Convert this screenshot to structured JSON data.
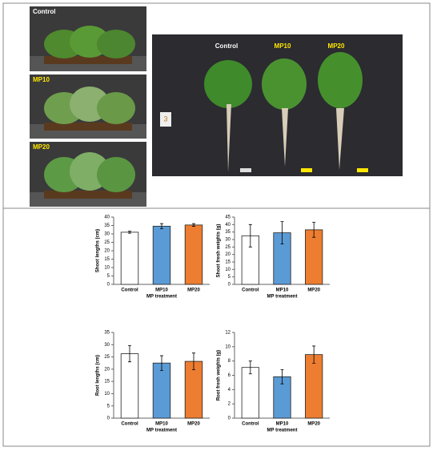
{
  "photos": {
    "panel_labels": [
      "Control",
      "MP10",
      "MP20"
    ],
    "main_labels": [
      "Control",
      "MP10",
      "MP20"
    ],
    "tag": "3"
  },
  "chart_data": [
    {
      "type": "bar",
      "y_label": "Shoot lengths (cm)",
      "x_label": "MP treatment",
      "categories": [
        "Control",
        "MP10",
        "MP20"
      ],
      "values": [
        31,
        34.6,
        35.3
      ],
      "errors": [
        0.6,
        1.5,
        0.8
      ],
      "colors": [
        "#ffffff",
        "#5b9bd5",
        "#ed7d31"
      ],
      "ylim": [
        0,
        40
      ],
      "yticks": [
        0,
        5,
        10,
        15,
        20,
        25,
        30,
        35,
        40
      ]
    },
    {
      "type": "bar",
      "y_label": "Shoot fresh weights (g)",
      "x_label": "MP treatment",
      "categories": [
        "Control",
        "MP10",
        "MP20"
      ],
      "values": [
        32.5,
        34.5,
        36.5
      ],
      "errors": [
        7.5,
        7.5,
        5
      ],
      "colors": [
        "#ffffff",
        "#5b9bd5",
        "#ed7d31"
      ],
      "ylim": [
        0,
        45
      ],
      "yticks": [
        0,
        5,
        10,
        15,
        20,
        25,
        30,
        35,
        40,
        45
      ]
    },
    {
      "type": "bar",
      "y_label": "Root lengths (cm)",
      "x_label": "MP treatment",
      "categories": [
        "Control",
        "MP10",
        "MP20"
      ],
      "values": [
        26.3,
        22.5,
        23.2
      ],
      "errors": [
        3.3,
        3,
        3.4
      ],
      "colors": [
        "#ffffff",
        "#5b9bd5",
        "#ed7d31"
      ],
      "ylim": [
        0,
        35
      ],
      "yticks": [
        0,
        5,
        10,
        15,
        20,
        25,
        30,
        35
      ]
    },
    {
      "type": "bar",
      "y_label": "Root fresh weights (g)",
      "x_label": "MP treatment",
      "categories": [
        "Control",
        "MP10",
        "MP20"
      ],
      "values": [
        7.1,
        5.8,
        8.9
      ],
      "errors": [
        0.9,
        1,
        1.2
      ],
      "colors": [
        "#ffffff",
        "#5b9bd5",
        "#ed7d31"
      ],
      "ylim": [
        0,
        12
      ],
      "yticks": [
        0,
        2,
        4,
        6,
        8,
        10,
        12
      ]
    }
  ]
}
